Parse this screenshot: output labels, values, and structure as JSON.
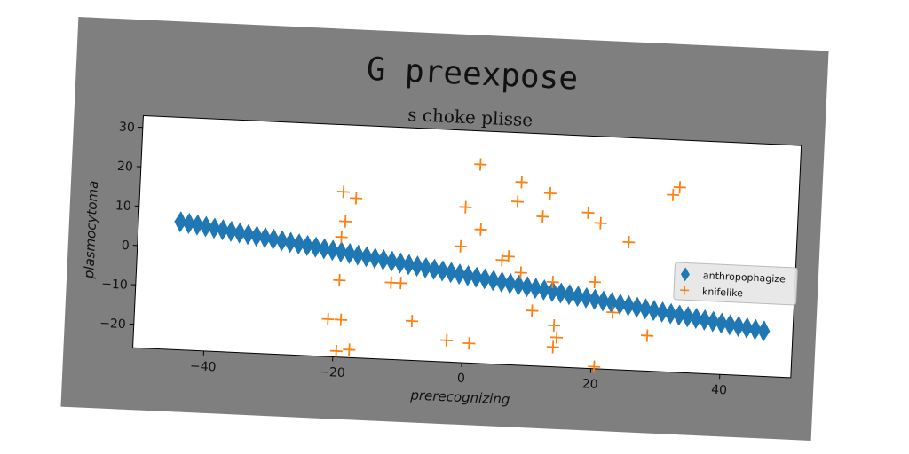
{
  "chart_data": {
    "type": "scatter",
    "suptitle": "G preexpose",
    "title": "s choke plisse",
    "xlabel": "prerecognizing",
    "ylabel": "plasmocytoma",
    "xlim": [
      -51,
      51
    ],
    "ylim": [
      -26,
      33
    ],
    "xticks": [
      -40,
      -20,
      0,
      20,
      40
    ],
    "yticks": [
      -20,
      -10,
      0,
      10,
      20,
      30
    ],
    "xtick_labels": [
      "−40",
      "−20",
      "0",
      "20",
      "40"
    ],
    "ytick_labels": [
      "−20",
      "−10",
      "0",
      "10",
      "20",
      "30"
    ],
    "grid": false,
    "legend_position": "center-right",
    "series": [
      {
        "name": "anthropophagize",
        "marker": "thin_diamond",
        "color": "#1f77b4",
        "line": {
          "x_start": -44.5,
          "x_end": 46.5,
          "n_points": 70,
          "y_start": 6.5,
          "y_end": -14.5
        }
      },
      {
        "name": "knifelike",
        "marker": "plus",
        "color": "#ff7f0e",
        "points": [
          [
            1.5,
            24.5
          ],
          [
            8,
            20.5
          ],
          [
            12.5,
            18
          ],
          [
            31.5,
            19
          ],
          [
            32.5,
            21
          ],
          [
            -19.5,
            16
          ],
          [
            -17.5,
            14.5
          ],
          [
            -0.5,
            13.5
          ],
          [
            7.5,
            15.5
          ],
          [
            11.5,
            12
          ],
          [
            18.5,
            13.5
          ],
          [
            20.5,
            11
          ],
          [
            -19,
            8.5
          ],
          [
            2,
            8
          ],
          [
            25,
            6.5
          ],
          [
            -19.5,
            4.5
          ],
          [
            -1,
            3.5
          ],
          [
            5.5,
            0.5
          ],
          [
            6.5,
            1.5
          ],
          [
            8.5,
            -2.5
          ],
          [
            20,
            -4
          ],
          [
            13.5,
            -4.5
          ],
          [
            -19.5,
            -6.5
          ],
          [
            -11.5,
            -6.5
          ],
          [
            -10,
            -6.5
          ],
          [
            10.5,
            -12
          ],
          [
            23,
            -11.5
          ],
          [
            -21,
            -16.5
          ],
          [
            -19,
            -16.5
          ],
          [
            -8,
            -16
          ],
          [
            14,
            -15.5
          ],
          [
            14.5,
            -18.5
          ],
          [
            28.5,
            -17
          ],
          [
            -2.5,
            -20.5
          ],
          [
            1,
            -21
          ],
          [
            14,
            -21
          ],
          [
            -19.5,
            -24.5
          ],
          [
            -17.5,
            -24
          ],
          [
            20.5,
            -25.5
          ],
          [
            29.5,
            -27.5
          ],
          [
            11,
            -30.5
          ]
        ]
      }
    ]
  }
}
